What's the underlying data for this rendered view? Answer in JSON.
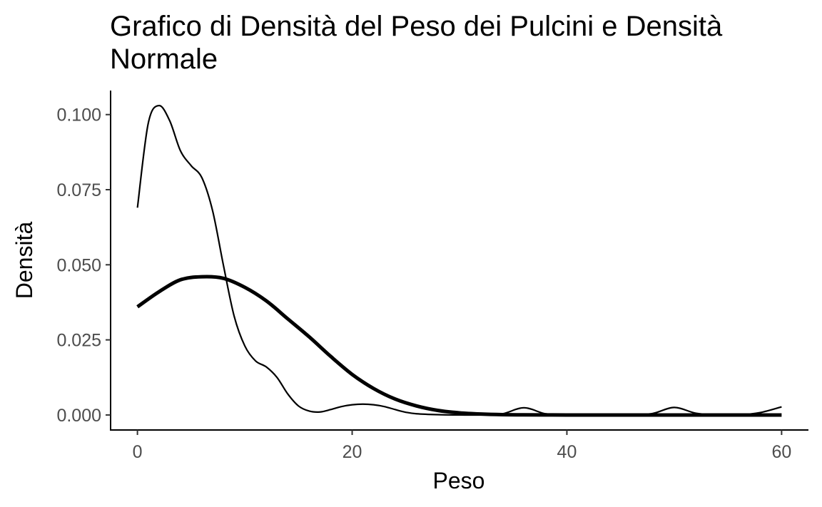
{
  "chart_data": {
    "type": "line",
    "title": "Grafico di Densità del Peso dei Pulcini e Densità Normale",
    "xlabel": "Peso",
    "ylabel": "Densità",
    "xlim": [
      -2.5,
      62.5
    ],
    "ylim": [
      -0.005,
      0.108
    ],
    "x_ticks": [
      0,
      20,
      40,
      60
    ],
    "x_tick_labels": [
      "0",
      "20",
      "40",
      "60"
    ],
    "y_ticks": [
      0.0,
      0.025,
      0.05,
      0.075,
      0.1
    ],
    "y_tick_labels": [
      "0.000",
      "0.025",
      "0.050",
      "0.075",
      "0.100"
    ],
    "grid": false,
    "series": [
      {
        "style": "thin",
        "x": [
          0,
          1,
          2,
          3,
          4,
          5,
          6,
          7,
          8,
          9,
          10,
          11,
          12,
          13,
          14,
          15,
          16,
          17,
          18,
          19,
          20,
          21,
          22,
          23,
          24,
          25,
          26,
          28,
          30,
          32,
          34,
          36,
          38,
          40,
          42,
          44,
          46,
          48,
          50,
          52,
          54,
          56,
          58,
          60
        ],
        "y": [
          0.069,
          0.097,
          0.103,
          0.098,
          0.088,
          0.083,
          0.079,
          0.068,
          0.05,
          0.033,
          0.023,
          0.018,
          0.016,
          0.0125,
          0.007,
          0.003,
          0.0013,
          0.001,
          0.0018,
          0.0028,
          0.0034,
          0.0036,
          0.0034,
          0.0028,
          0.0018,
          0.0009,
          0.0004,
          0.0001,
          0.0,
          0.0,
          0.0004,
          0.0024,
          0.0004,
          0.0,
          0.0,
          0.0,
          0.0,
          0.0005,
          0.0025,
          0.0006,
          0.0,
          0.0,
          0.0008,
          0.0027
        ]
      },
      {
        "style": "thick",
        "x": [
          0,
          2,
          4,
          6,
          8,
          10,
          12,
          14,
          16,
          18,
          20,
          22,
          24,
          26,
          28,
          30,
          32,
          34,
          36,
          40,
          44,
          48,
          52,
          56,
          60
        ],
        "y": [
          0.036,
          0.041,
          0.045,
          0.046,
          0.0455,
          0.0425,
          0.038,
          0.032,
          0.026,
          0.0195,
          0.0135,
          0.0088,
          0.0053,
          0.003,
          0.0015,
          0.0007,
          0.0003,
          0.0001,
          5e-05,
          0.0,
          0.0,
          0.0,
          0.0,
          0.0,
          0.0
        ]
      }
    ]
  }
}
